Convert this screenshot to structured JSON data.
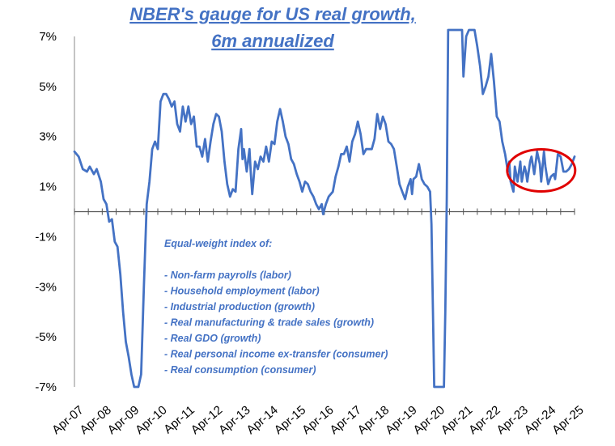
{
  "chart_data": {
    "type": "line",
    "title_lines": [
      "NBER's gauge for US real growth,",
      "6m annualized"
    ],
    "ylim": [
      -7,
      7
    ],
    "yticks": [
      7,
      5,
      3,
      1,
      -1,
      -3,
      -5,
      -7
    ],
    "ytick_labels": [
      "7%",
      "5%",
      "3%",
      "1%",
      "-1%",
      "-3%",
      "-5%",
      "-7%"
    ],
    "x_labels": [
      "Apr-07",
      "Apr-08",
      "Apr-09",
      "Apr-10",
      "Apr-11",
      "Apr-12",
      "Apr-13",
      "Apr-14",
      "Apr-15",
      "Apr-16",
      "Apr-17",
      "Apr-18",
      "Apr-19",
      "Apr-20",
      "Apr-21",
      "Apr-22",
      "Apr-23",
      "Apr-24",
      "Apr-25"
    ],
    "line_color": "#4472C4",
    "highlight_color": "#E00000",
    "series": [
      {
        "points": [
          [
            2007.25,
            2.4
          ],
          [
            2007.4,
            2.2
          ],
          [
            2007.55,
            1.7
          ],
          [
            2007.7,
            1.6
          ],
          [
            2007.8,
            1.8
          ],
          [
            2007.95,
            1.5
          ],
          [
            2008.05,
            1.7
          ],
          [
            2008.2,
            1.2
          ],
          [
            2008.3,
            0.5
          ],
          [
            2008.4,
            0.3
          ],
          [
            2008.5,
            -0.4
          ],
          [
            2008.6,
            -0.3
          ],
          [
            2008.7,
            -1.2
          ],
          [
            2008.8,
            -1.4
          ],
          [
            2008.9,
            -2.5
          ],
          [
            2009.0,
            -4.0
          ],
          [
            2009.1,
            -5.2
          ],
          [
            2009.2,
            -5.8
          ],
          [
            2009.3,
            -6.5
          ],
          [
            2009.4,
            -7.2
          ],
          [
            2009.55,
            -7.2
          ],
          [
            2009.65,
            -6.5
          ],
          [
            2009.75,
            -3.0
          ],
          [
            2009.85,
            0.3
          ],
          [
            2009.95,
            1.2
          ],
          [
            2010.05,
            2.5
          ],
          [
            2010.15,
            2.8
          ],
          [
            2010.25,
            2.5
          ],
          [
            2010.35,
            4.4
          ],
          [
            2010.45,
            4.7
          ],
          [
            2010.55,
            4.7
          ],
          [
            2010.65,
            4.5
          ],
          [
            2010.75,
            4.2
          ],
          [
            2010.85,
            4.4
          ],
          [
            2010.95,
            3.5
          ],
          [
            2011.05,
            3.2
          ],
          [
            2011.15,
            4.2
          ],
          [
            2011.25,
            3.6
          ],
          [
            2011.35,
            4.2
          ],
          [
            2011.45,
            3.5
          ],
          [
            2011.55,
            3.8
          ],
          [
            2011.65,
            2.6
          ],
          [
            2011.75,
            2.6
          ],
          [
            2011.85,
            2.2
          ],
          [
            2011.95,
            2.9
          ],
          [
            2012.05,
            2.0
          ],
          [
            2012.15,
            2.8
          ],
          [
            2012.25,
            3.5
          ],
          [
            2012.35,
            3.9
          ],
          [
            2012.45,
            3.8
          ],
          [
            2012.55,
            3.2
          ],
          [
            2012.65,
            2.0
          ],
          [
            2012.75,
            1.1
          ],
          [
            2012.85,
            0.6
          ],
          [
            2012.95,
            0.9
          ],
          [
            2013.05,
            0.8
          ],
          [
            2013.15,
            2.5
          ],
          [
            2013.25,
            3.3
          ],
          [
            2013.3,
            2.1
          ],
          [
            2013.35,
            2.5
          ],
          [
            2013.45,
            1.6
          ],
          [
            2013.55,
            2.5
          ],
          [
            2013.6,
            1.5
          ],
          [
            2013.65,
            0.7
          ],
          [
            2013.75,
            2.0
          ],
          [
            2013.85,
            1.7
          ],
          [
            2013.95,
            2.2
          ],
          [
            2014.05,
            2.0
          ],
          [
            2014.15,
            2.6
          ],
          [
            2014.25,
            2.0
          ],
          [
            2014.35,
            2.8
          ],
          [
            2014.45,
            2.7
          ],
          [
            2014.55,
            3.6
          ],
          [
            2014.65,
            4.1
          ],
          [
            2014.75,
            3.6
          ],
          [
            2014.85,
            3.0
          ],
          [
            2014.95,
            2.7
          ],
          [
            2015.05,
            2.1
          ],
          [
            2015.15,
            1.9
          ],
          [
            2015.25,
            1.5
          ],
          [
            2015.35,
            1.2
          ],
          [
            2015.45,
            0.8
          ],
          [
            2015.55,
            1.2
          ],
          [
            2015.65,
            1.1
          ],
          [
            2015.75,
            0.8
          ],
          [
            2015.85,
            0.6
          ],
          [
            2015.95,
            0.3
          ],
          [
            2016.05,
            0.1
          ],
          [
            2016.15,
            0.3
          ],
          [
            2016.2,
            -0.1
          ],
          [
            2016.3,
            0.3
          ],
          [
            2016.4,
            0.6
          ],
          [
            2016.55,
            0.8
          ],
          [
            2016.65,
            1.4
          ],
          [
            2016.75,
            1.8
          ],
          [
            2016.85,
            2.3
          ],
          [
            2016.95,
            2.3
          ],
          [
            2017.05,
            2.6
          ],
          [
            2017.15,
            2.0
          ],
          [
            2017.25,
            2.8
          ],
          [
            2017.35,
            3.1
          ],
          [
            2017.45,
            3.6
          ],
          [
            2017.55,
            3.1
          ],
          [
            2017.65,
            2.3
          ],
          [
            2017.75,
            2.5
          ],
          [
            2017.85,
            2.5
          ],
          [
            2017.95,
            2.5
          ],
          [
            2018.05,
            2.9
          ],
          [
            2018.15,
            3.9
          ],
          [
            2018.25,
            3.3
          ],
          [
            2018.35,
            3.8
          ],
          [
            2018.45,
            3.5
          ],
          [
            2018.55,
            2.8
          ],
          [
            2018.65,
            2.7
          ],
          [
            2018.75,
            2.5
          ],
          [
            2018.85,
            1.8
          ],
          [
            2018.95,
            1.1
          ],
          [
            2019.05,
            0.8
          ],
          [
            2019.15,
            0.5
          ],
          [
            2019.25,
            1.0
          ],
          [
            2019.35,
            1.3
          ],
          [
            2019.4,
            0.7
          ],
          [
            2019.45,
            1.3
          ],
          [
            2019.55,
            1.4
          ],
          [
            2019.65,
            1.9
          ],
          [
            2019.75,
            1.3
          ],
          [
            2019.85,
            1.1
          ],
          [
            2019.95,
            1.0
          ],
          [
            2020.05,
            0.8
          ],
          [
            2020.1,
            -0.5
          ],
          [
            2020.2,
            -7.2
          ],
          [
            2020.55,
            -7.2
          ],
          [
            2020.6,
            -4.0
          ],
          [
            2020.65,
            0.5
          ],
          [
            2020.7,
            7.3
          ],
          [
            2021.2,
            7.3
          ],
          [
            2021.25,
            5.4
          ],
          [
            2021.35,
            7.0
          ],
          [
            2021.45,
            7.3
          ],
          [
            2021.65,
            7.3
          ],
          [
            2021.75,
            6.6
          ],
          [
            2021.85,
            5.8
          ],
          [
            2021.95,
            4.7
          ],
          [
            2022.05,
            5.0
          ],
          [
            2022.15,
            5.4
          ],
          [
            2022.25,
            6.3
          ],
          [
            2022.35,
            5.2
          ],
          [
            2022.45,
            3.8
          ],
          [
            2022.55,
            3.6
          ],
          [
            2022.65,
            2.8
          ],
          [
            2022.75,
            2.3
          ],
          [
            2022.85,
            1.6
          ],
          [
            2022.9,
            2.0
          ],
          [
            2022.95,
            1.2
          ],
          [
            2023.05,
            0.8
          ],
          [
            2023.1,
            1.8
          ],
          [
            2023.2,
            1.2
          ],
          [
            2023.3,
            2.0
          ],
          [
            2023.35,
            1.2
          ],
          [
            2023.45,
            1.8
          ],
          [
            2023.5,
            1.6
          ],
          [
            2023.55,
            1.2
          ],
          [
            2023.65,
            2.0
          ],
          [
            2023.7,
            2.2
          ],
          [
            2023.8,
            1.5
          ],
          [
            2023.9,
            2.4
          ],
          [
            2024.0,
            1.9
          ],
          [
            2024.05,
            1.2
          ],
          [
            2024.15,
            2.4
          ],
          [
            2024.2,
            1.8
          ],
          [
            2024.3,
            1.1
          ],
          [
            2024.4,
            1.4
          ],
          [
            2024.5,
            1.5
          ],
          [
            2024.55,
            1.3
          ],
          [
            2024.65,
            2.3
          ],
          [
            2024.75,
            2.2
          ],
          [
            2024.85,
            1.6
          ],
          [
            2024.95,
            1.6
          ],
          [
            2025.05,
            1.7
          ],
          [
            2025.15,
            1.9
          ],
          [
            2025.25,
            2.2
          ]
        ]
      }
    ],
    "annotation": {
      "lines": [
        "Equal-weight index of:",
        "",
        "- Non-farm payrolls (labor)",
        "- Household employment (labor)",
        "- Industrial production (growth)",
        "- Real manufacturing & trade sales (growth)",
        "- Real GDO (growth)",
        "- Real personal income ex-transfer (consumer)",
        "- Real consumption (consumer)"
      ]
    },
    "highlight": {
      "shape": "ellipse",
      "x_center": 2024.05,
      "y_center": 1.65
    }
  }
}
